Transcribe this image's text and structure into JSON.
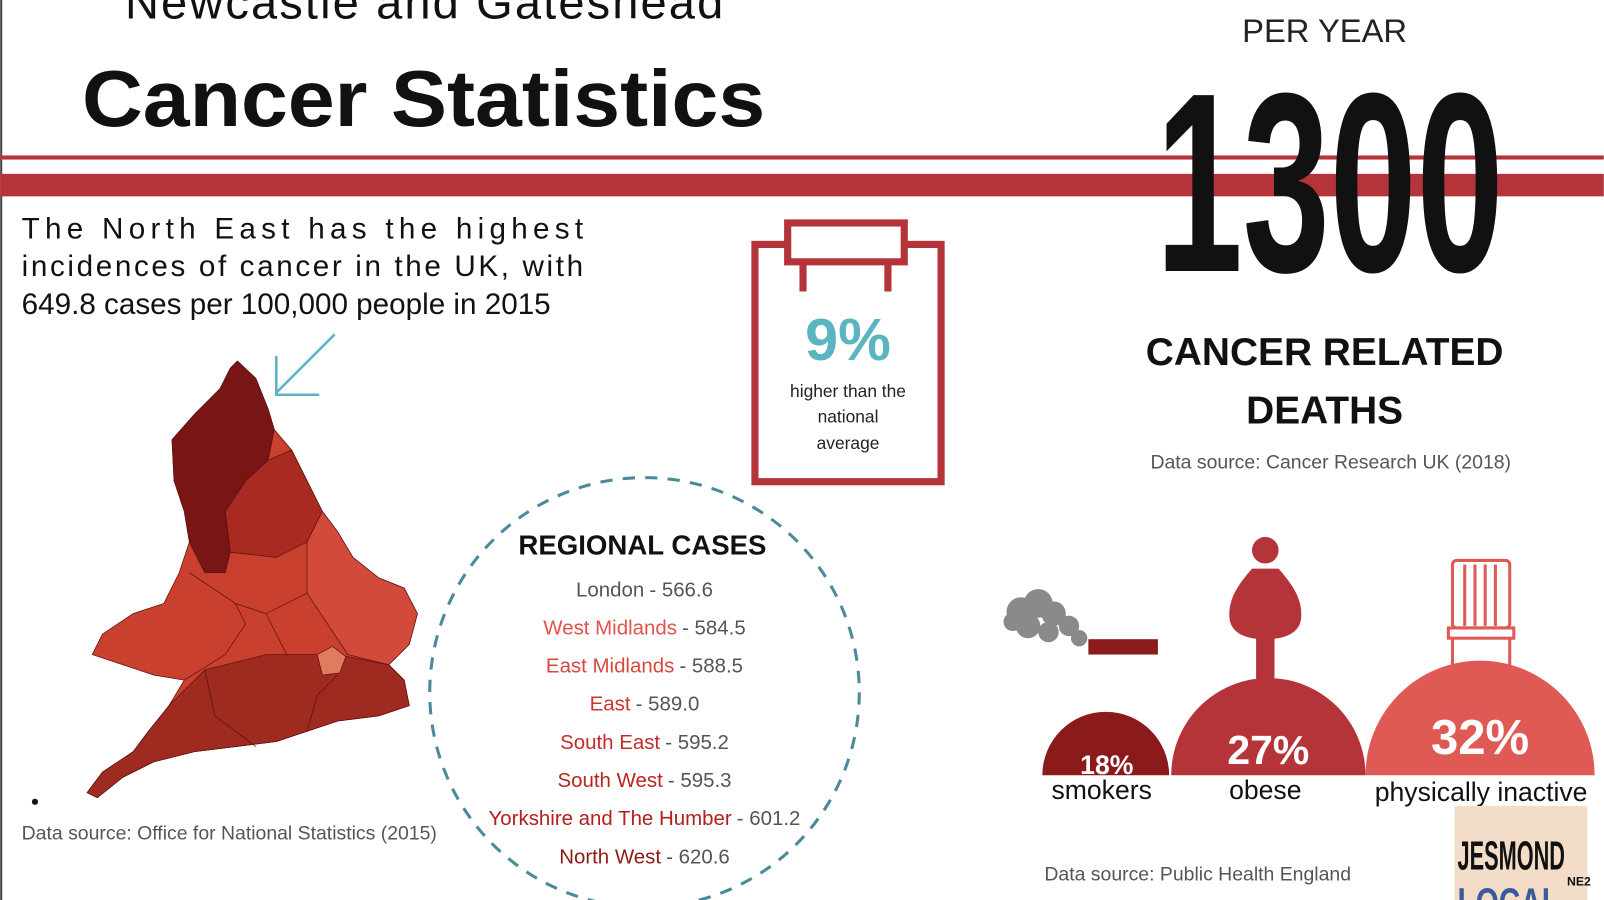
{
  "header": {
    "subtitle": "Newcastle and Gateshead",
    "title": "Cancer Statistics"
  },
  "intro": {
    "lines": [
      "The North East has the highest",
      "incidences of cancer in the UK, with",
      "649.8 cases per 100,000 people in 2015"
    ]
  },
  "map": {
    "source": "Data source: Office for National Statistics (2015)"
  },
  "comparison": {
    "value": "9%",
    "caption": [
      "higher than the",
      "national",
      "average"
    ]
  },
  "regional": {
    "title": "REGIONAL CASES",
    "rows": [
      {
        "region": "London",
        "value": "- 566.6",
        "color": "#555555"
      },
      {
        "region": "West Midlands",
        "value": "- 584.5",
        "color": "#e0524c"
      },
      {
        "region": "East Midlands",
        "value": "- 588.5",
        "color": "#d9473f"
      },
      {
        "region": "East",
        "value": "- 589.0",
        "color": "#cc3530"
      },
      {
        "region": "South East",
        "value": "- 595.2",
        "color": "#c42c29"
      },
      {
        "region": "South West",
        "value": "- 595.3",
        "color": "#b8241f"
      },
      {
        "region": "Yorkshire and The Humber",
        "value": "- 601.2",
        "color": "#b0201c"
      },
      {
        "region": "North West",
        "value": "- 620.6",
        "color": "#8e1a17"
      }
    ]
  },
  "deaths": {
    "period": "PER YEAR",
    "count": "1300",
    "label": [
      "CANCER RELATED",
      "DEATHS"
    ],
    "source": "Data source: Cancer Research UK (2018)"
  },
  "lifestyle": {
    "items": [
      {
        "percent": "18%",
        "label": "smokers"
      },
      {
        "percent": "27%",
        "label": "obese"
      },
      {
        "percent": "32%",
        "label": "physically inactive"
      }
    ],
    "source": "Data source: Public Health England"
  },
  "logo": {
    "name": "JESMOND",
    "sub": "LOCAL",
    "tag": "NE2"
  }
}
